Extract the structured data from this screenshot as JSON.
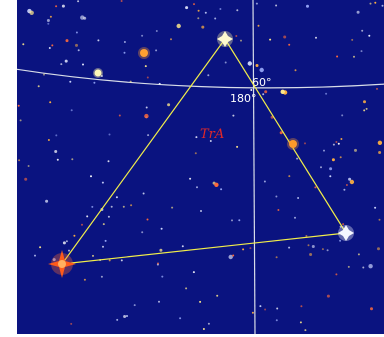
{
  "sky": {
    "background_color": "#0a1380",
    "grid_color": "#d8dde8",
    "constellation_line_color": "#f2ee4a",
    "grid_labels": {
      "declination": "60°",
      "ra": "180°"
    },
    "constellation_label": "TrA"
  },
  "icons": {
    "bright_star_colors": [
      "#ff6a2a",
      "#ff9a2a",
      "#fff6a8",
      "#ffffff",
      "#aab8ff"
    ]
  }
}
